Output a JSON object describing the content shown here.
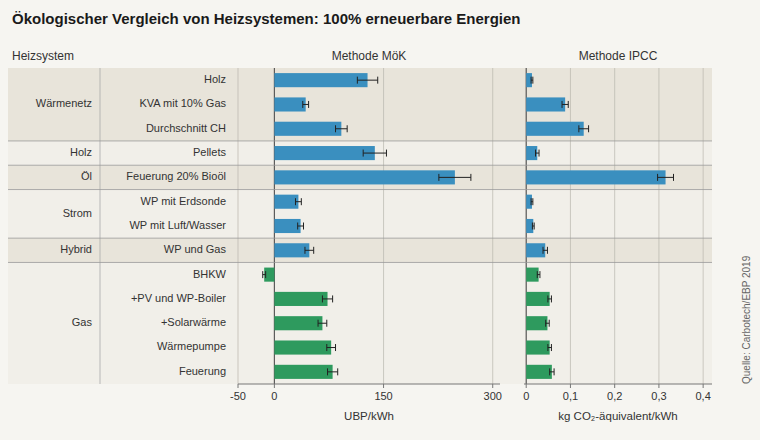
{
  "chart_data": [
    {
      "type": "bar",
      "orientation": "horizontal",
      "title": "Ökologischer Vergleich von Heizsystemen: 100% erneuerbare Energien",
      "subtitle": "Methode MöK",
      "annotations": [
        "Heizsystem",
        "Quelle: Carbotech/EBP 2019"
      ],
      "categories": [
        "Holz",
        "KVA mit 10% Gas",
        "Durchschnitt CH",
        "Pellets",
        "Feuerung 20% Bioöl",
        "WP mit Erdsonde",
        "WP mit Luft/Wasser",
        "WP und Gas",
        "BHKW",
        "+PV und WP-Boiler",
        "+Solarwärme",
        "Wärmepumpe",
        "Feuerung"
      ],
      "groups": [
        {
          "name": "Wärmenetz",
          "rows": [
            0,
            1,
            2
          ]
        },
        {
          "name": "Holz",
          "rows": [
            3
          ]
        },
        {
          "name": "Öl",
          "rows": [
            4
          ]
        },
        {
          "name": "Strom",
          "rows": [
            5,
            6
          ]
        },
        {
          "name": "Hybrid",
          "rows": [
            7
          ]
        },
        {
          "name": "Gas",
          "rows": [
            8,
            9,
            10,
            11,
            12
          ]
        }
      ],
      "values": [
        128,
        43,
        92,
        138,
        248,
        33,
        36,
        48,
        -14,
        73,
        66,
        78,
        80
      ],
      "errors": [
        14,
        4,
        8,
        16,
        22,
        4,
        4,
        6,
        2,
        7,
        6,
        6,
        7
      ],
      "colors": [
        "#3a8fbf",
        "#3a8fbf",
        "#3a8fbf",
        "#3a8fbf",
        "#3a8fbf",
        "#3a8fbf",
        "#3a8fbf",
        "#3a8fbf",
        "#2e9a5e",
        "#2e9a5e",
        "#2e9a5e",
        "#2e9a5e",
        "#2e9a5e"
      ],
      "xlabel": "UBP/kWh",
      "xlim": [
        -50,
        310
      ],
      "xticks": [
        -50,
        0,
        150,
        300
      ],
      "grid": true
    },
    {
      "type": "bar",
      "orientation": "horizontal",
      "title": "Methode IPCC",
      "values": [
        0.013,
        0.088,
        0.13,
        0.025,
        0.315,
        0.013,
        0.016,
        0.043,
        0.028,
        0.053,
        0.048,
        0.053,
        0.058
      ],
      "errors": [
        0.002,
        0.007,
        0.011,
        0.004,
        0.018,
        0.002,
        0.002,
        0.005,
        0.003,
        0.004,
        0.004,
        0.004,
        0.005
      ],
      "colors": [
        "#3a8fbf",
        "#3a8fbf",
        "#3a8fbf",
        "#3a8fbf",
        "#3a8fbf",
        "#3a8fbf",
        "#3a8fbf",
        "#3a8fbf",
        "#2e9a5e",
        "#2e9a5e",
        "#2e9a5e",
        "#2e9a5e",
        "#2e9a5e"
      ],
      "xlabel": "kg CO₂-äquivalent/kWh",
      "xlim": [
        -0.005,
        0.42
      ],
      "xticks": [
        0,
        {
          "value": 0.1,
          "label": "0,1"
        },
        {
          "value": 0.2,
          "label": "0,2"
        },
        {
          "value": 0.3,
          "label": "0,3"
        },
        {
          "value": 0.4,
          "label": "0,4"
        }
      ],
      "grid": true
    }
  ]
}
